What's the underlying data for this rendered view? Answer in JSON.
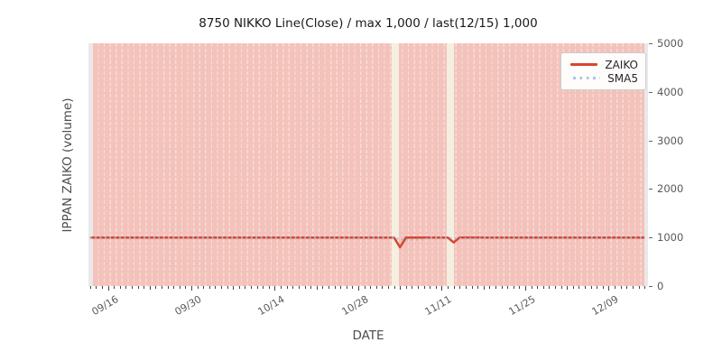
{
  "title": "8750 NIKKO Line(Close) / max 1,000 / last(12/15) 1,000",
  "axes": {
    "x_label": "DATE",
    "y_label": "IPPAN ZAIKO (volume)",
    "y_ticks": [
      {
        "value": 0,
        "label": "0"
      },
      {
        "value": 1000,
        "label": "1000"
      },
      {
        "value": 2000,
        "label": "2000"
      },
      {
        "value": 3000,
        "label": "3000"
      },
      {
        "value": 4000,
        "label": "4000"
      },
      {
        "value": 5000,
        "label": "5000"
      }
    ],
    "x_ticks": [
      {
        "label": "09/16",
        "day": 3
      },
      {
        "label": "09/30",
        "day": 17
      },
      {
        "label": "10/14",
        "day": 31
      },
      {
        "label": "10/28",
        "day": 45
      },
      {
        "label": "11/11",
        "day": 59
      },
      {
        "label": "11/25",
        "day": 73
      },
      {
        "label": "12/09",
        "day": 87
      }
    ],
    "date_start": "09/13",
    "date_end": "12/15",
    "total_days": 93
  },
  "legend": {
    "items": [
      {
        "label": "ZAIKO",
        "style": "solid",
        "color": "#d9452f"
      },
      {
        "label": "SMA5",
        "style": "dotted",
        "color": "#a8c6e4"
      }
    ]
  },
  "colors": {
    "plot_background": "#e9e9e9",
    "bar_fill": "#f3c2bb",
    "bar_stripe": "#f8dcd6",
    "gap_band": "#f5efe1",
    "zaiko_line": "#d9452f",
    "sma5_line": "#9fbbdb",
    "title_text": "#1a1a1a",
    "tick_text": "#595959",
    "axis_label_text": "#4d4d4d"
  },
  "chart_data": {
    "type": "line",
    "title": "8750 NIKKO Line(Close) / max 1,000 / last(12/15) 1,000",
    "xlabel": "DATE",
    "ylabel": "IPPAN ZAIKO (volume)",
    "ylim": [
      0,
      5000
    ],
    "x_range": [
      "09/13",
      "12/15"
    ],
    "grid": false,
    "legend_position": "upper right",
    "background_bars": "full-height light-red daily spans with lighter dashed day separators",
    "series": [
      {
        "name": "ZAIKO",
        "style": "solid",
        "color": "#d9452f",
        "points": [
          {
            "date": "09/13",
            "day": 0,
            "value": 1000
          },
          {
            "date": "11/03",
            "day": 51,
            "value": 1000
          },
          {
            "date": "11/04",
            "day": 52,
            "value": 800
          },
          {
            "date": "11/05",
            "day": 53,
            "value": 1000
          },
          {
            "date": "11/12",
            "day": 60,
            "value": 1000
          },
          {
            "date": "11/13",
            "day": 61,
            "value": 900
          },
          {
            "date": "11/14",
            "day": 62,
            "value": 1000
          },
          {
            "date": "12/15",
            "day": 93,
            "value": 1000
          }
        ]
      },
      {
        "name": "SMA5",
        "style": "dotted",
        "color": "#9fbbdb",
        "points": [
          {
            "date": "09/13",
            "day": 0,
            "value": 1000
          },
          {
            "date": "11/03",
            "day": 51,
            "value": 1000
          },
          {
            "date": "11/04",
            "day": 52,
            "value": 960
          },
          {
            "date": "11/08",
            "day": 56,
            "value": 960
          },
          {
            "date": "11/09",
            "day": 57,
            "value": 1000
          },
          {
            "date": "11/12",
            "day": 60,
            "value": 1000
          },
          {
            "date": "11/13",
            "day": 61,
            "value": 980
          },
          {
            "date": "11/17",
            "day": 65,
            "value": 980
          },
          {
            "date": "11/18",
            "day": 66,
            "value": 1000
          },
          {
            "date": "12/15",
            "day": 93,
            "value": 1000
          }
        ]
      }
    ],
    "gaps": [
      {
        "from_day": 50.6,
        "to_day": 51.8,
        "around_date": "11/03"
      },
      {
        "from_day": 59.8,
        "to_day": 61.1,
        "around_date": "11/12"
      }
    ]
  }
}
